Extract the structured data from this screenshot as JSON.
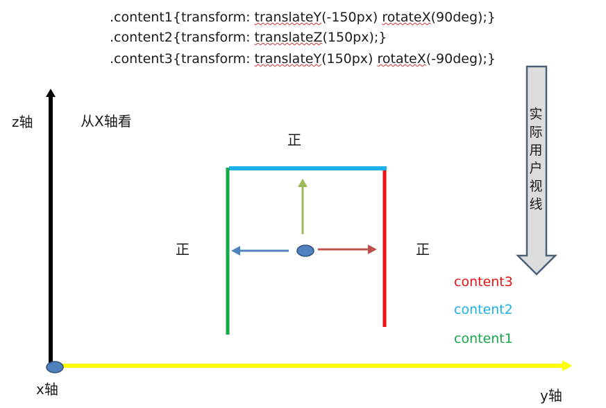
{
  "code": {
    "line1": {
      "pre": ".content1{transform: ",
      "fn1": "translateY",
      "arg1": "(-150px)  ",
      "fn2": "rotateX",
      "arg2": "(90deg);}"
    },
    "line2": {
      "pre": ".content2{transform: ",
      "fn1": "translateZ",
      "arg1": "(150px);}"
    },
    "line3": {
      "pre": ".content3{transform: ",
      "fn1": "translateY",
      "arg1": "(150px)  ",
      "fn2": "rotateX",
      "arg2": "(-90deg);}"
    }
  },
  "axes": {
    "z_label": "z轴",
    "x_label": "x轴",
    "y_label": "y轴"
  },
  "view_label": "从X轴看",
  "positive_labels": {
    "top": "正",
    "left": "正",
    "right": "正"
  },
  "user_view_label": "实际用户视线",
  "legend": [
    {
      "name": "content3",
      "color": "#ee1111"
    },
    {
      "name": "content2",
      "color": "#1cb0ea"
    },
    {
      "name": "content1",
      "color": "#16a84a"
    }
  ],
  "colors": {
    "z_axis": "#000000",
    "y_axis": "#ffff00",
    "content1": "#16a84a",
    "content2": "#1cb0ea",
    "content3": "#ee1111",
    "arrow_up": "#9bbb59",
    "arrow_left": "#4f81bd",
    "arrow_right": "#c0504d",
    "dot_fill": "#4f81bd",
    "dot_stroke": "#2e4f7a",
    "view_arrow_fill": "#dcdcdc",
    "view_arrow_stroke": "#4b5f79"
  }
}
